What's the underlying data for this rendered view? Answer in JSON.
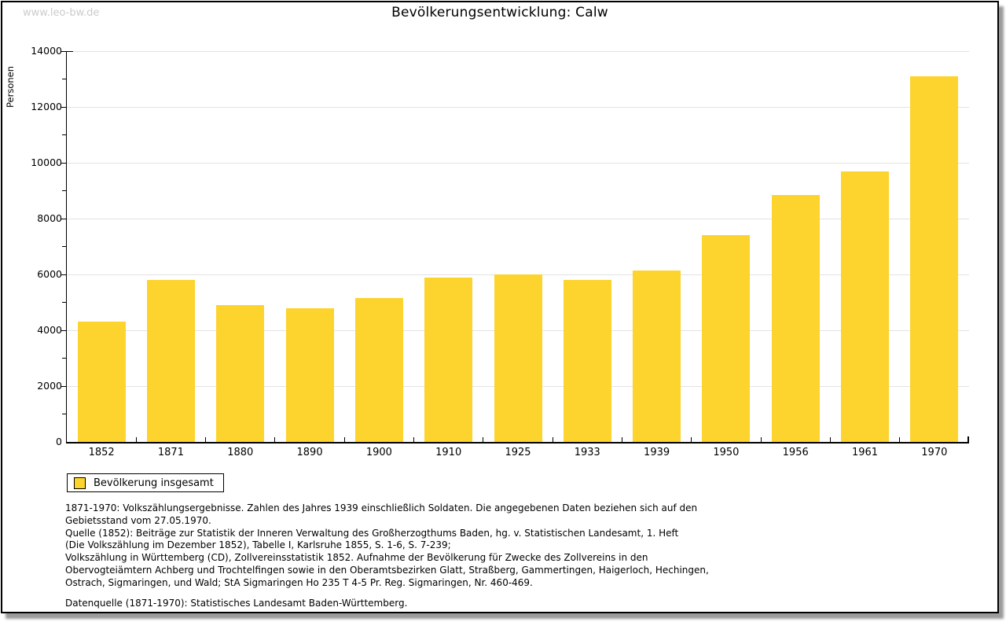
{
  "page": {
    "watermark": "www.leo-bw.de",
    "title": "Bevölkerungsentwicklung: Calw"
  },
  "chart_data": {
    "type": "bar",
    "title": "Bevölkerungsentwicklung: Calw",
    "xlabel": "",
    "ylabel": "Personen",
    "ylim": [
      0,
      14000
    ],
    "ytick_major_step": 2000,
    "ytick_minor_step": 1000,
    "grid": "horizontal-major",
    "bar_color": "#fdd32e",
    "legend_position": "bottom-left",
    "categories": [
      "1852",
      "1871",
      "1880",
      "1890",
      "1900",
      "1910",
      "1925",
      "1933",
      "1939",
      "1950",
      "1956",
      "1961",
      "1970"
    ],
    "series": [
      {
        "name": "Bevölkerung insgesamt",
        "values": [
          4300,
          5800,
          4900,
          4800,
          5150,
          5900,
          6000,
          5800,
          6150,
          7400,
          8850,
          9700,
          13100
        ]
      }
    ]
  },
  "legend": {
    "items": [
      {
        "label": "Bevölkerung insgesamt",
        "color": "#fdd32e"
      }
    ]
  },
  "footnotes": {
    "source_lines": [
      "1871-1970: Volkszählungsergebnisse. Zahlen des Jahres 1939 einschließlich Soldaten. Die angegebenen Daten beziehen sich auf den",
      "Gebietsstand vom 27.05.1970.",
      "Quelle (1852): Beiträge zur Statistik der Inneren Verwaltung des Großherzogthums Baden, hg. v. Statistischen Landesamt, 1. Heft",
      "(Die Volkszählung im Dezember 1852), Tabelle I, Karlsruhe 1855, S. 1-6, S. 7-239;",
      "Volkszählung in Württemberg (CD), Zollvereinsstatistik 1852. Aufnahme der Bevölkerung für Zwecke des Zollvereins in den",
      "Obervogteiämtern Achberg und Trochtelfingen sowie in den Oberamtsbezirken Glatt, Straßberg, Gammertingen, Haigerloch, Hechingen,",
      "Ostrach, Sigmaringen, und Wald; StA Sigmaringen Ho 235 T 4-5 Pr. Reg. Sigmaringen, Nr. 460-469."
    ],
    "datasource": "Datenquelle (1871-1970): Statistisches Landesamt Baden-Württemberg."
  }
}
